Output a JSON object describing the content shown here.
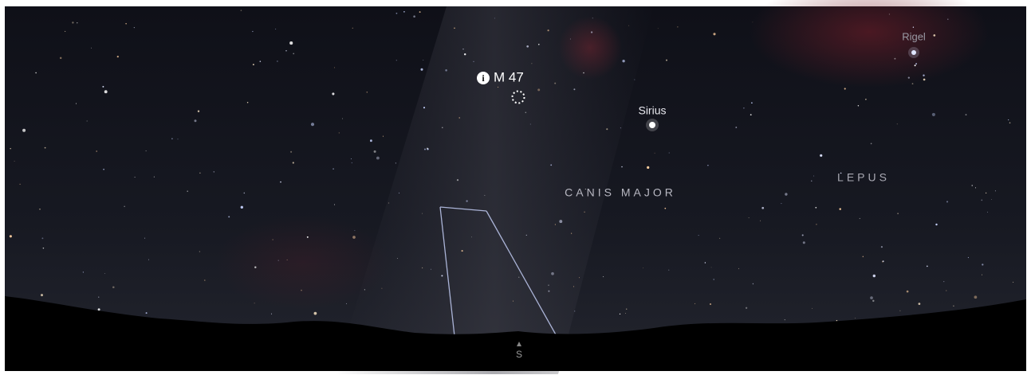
{
  "sky_view": {
    "deep_sky_object": "M 47",
    "stars": [
      "Sirius",
      "Rigel"
    ],
    "constellations": [
      "CANIS MAJOR",
      "LEPUS"
    ],
    "compass_direction": "S"
  }
}
